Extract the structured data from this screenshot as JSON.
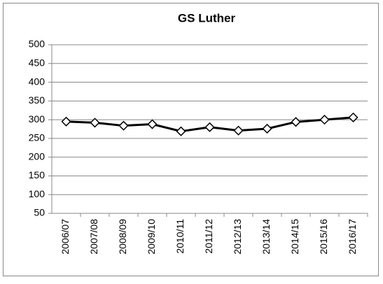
{
  "chart_data": {
    "type": "line",
    "title": "GS Luther",
    "categories": [
      "2006/07",
      "2007/08",
      "2008/09",
      "2009/10",
      "2010/11",
      "2011/12",
      "2012/13",
      "2013/14",
      "2014/15",
      "2015/16",
      "2016/17"
    ],
    "values": [
      295,
      292,
      284,
      288,
      269,
      280,
      271,
      276,
      294,
      300,
      306
    ],
    "color": "#000000",
    "ylim": [
      50,
      500
    ],
    "yticks": [
      50,
      100,
      150,
      200,
      250,
      300,
      350,
      400,
      450,
      500
    ],
    "grid": true
  }
}
